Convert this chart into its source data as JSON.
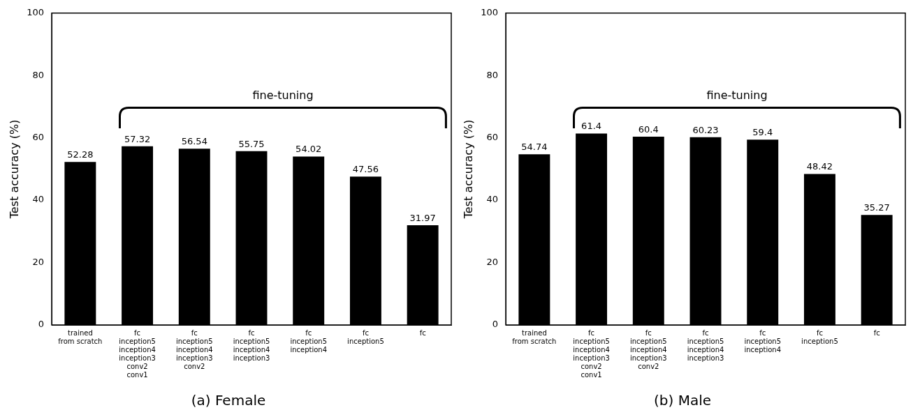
{
  "chart_data": [
    {
      "type": "bar",
      "title": "(a) Female",
      "ylabel": "Test accuracy (%)",
      "categories": [
        "trained\nfrom scratch",
        "fc\ninception5\ninception4\ninception3\nconv2\nconv1",
        "fc\ninception5\ninception4\ninception3\nconv2",
        "fc\ninception5\ninception4\ninception3",
        "fc\ninception5\ninception4",
        "fc\ninception5",
        "fc"
      ],
      "values": [
        52.28,
        57.32,
        56.54,
        55.75,
        54.02,
        47.56,
        31.97
      ],
      "color": "#000000",
      "ylim": [
        0,
        100
      ],
      "yticks": [
        0,
        20,
        40,
        60,
        80,
        100
      ],
      "data_labels": true,
      "annotations": [
        "fine-tuning"
      ]
    },
    {
      "type": "bar",
      "title": "(b) Male",
      "ylabel": "Test accuracy (%)",
      "categories": [
        "trained\nfrom scratch",
        "fc\ninception5\ninception4\ninception3\nconv2\nconv1",
        "fc\ninception5\ninception4\ninception3\nconv2",
        "fc\ninception5\ninception4\ninception3",
        "fc\ninception5\ninception4",
        "fc\ninception5",
        "fc"
      ],
      "values": [
        54.74,
        61.4,
        60.4,
        60.23,
        59.4,
        48.42,
        35.27
      ],
      "color": "#000000",
      "ylim": [
        0,
        100
      ],
      "yticks": [
        0,
        20,
        40,
        60,
        80,
        100
      ],
      "data_labels": true,
      "annotations": [
        "fine-tuning"
      ]
    }
  ]
}
